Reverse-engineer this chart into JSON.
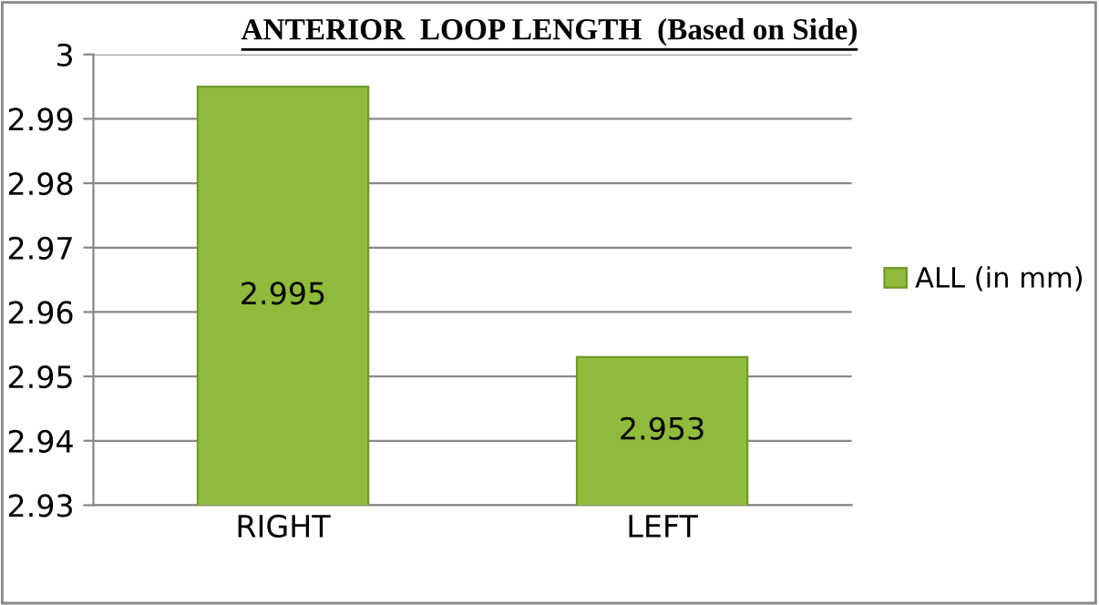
{
  "chart_data": {
    "type": "bar",
    "title": "ANTERIOR  LOOP LENGTH  (Based on Side)",
    "categories": [
      "RIGHT",
      "LEFT"
    ],
    "series": [
      {
        "name": "ALL (in mm)",
        "color": "#8fba3c",
        "values": [
          2.995,
          2.953
        ]
      }
    ],
    "ylim": [
      2.93,
      3
    ],
    "yticks": [
      2.93,
      2.94,
      2.95,
      2.96,
      2.97,
      2.98,
      2.99,
      3
    ],
    "grid": "y",
    "legend": "right",
    "data_labels": true
  }
}
